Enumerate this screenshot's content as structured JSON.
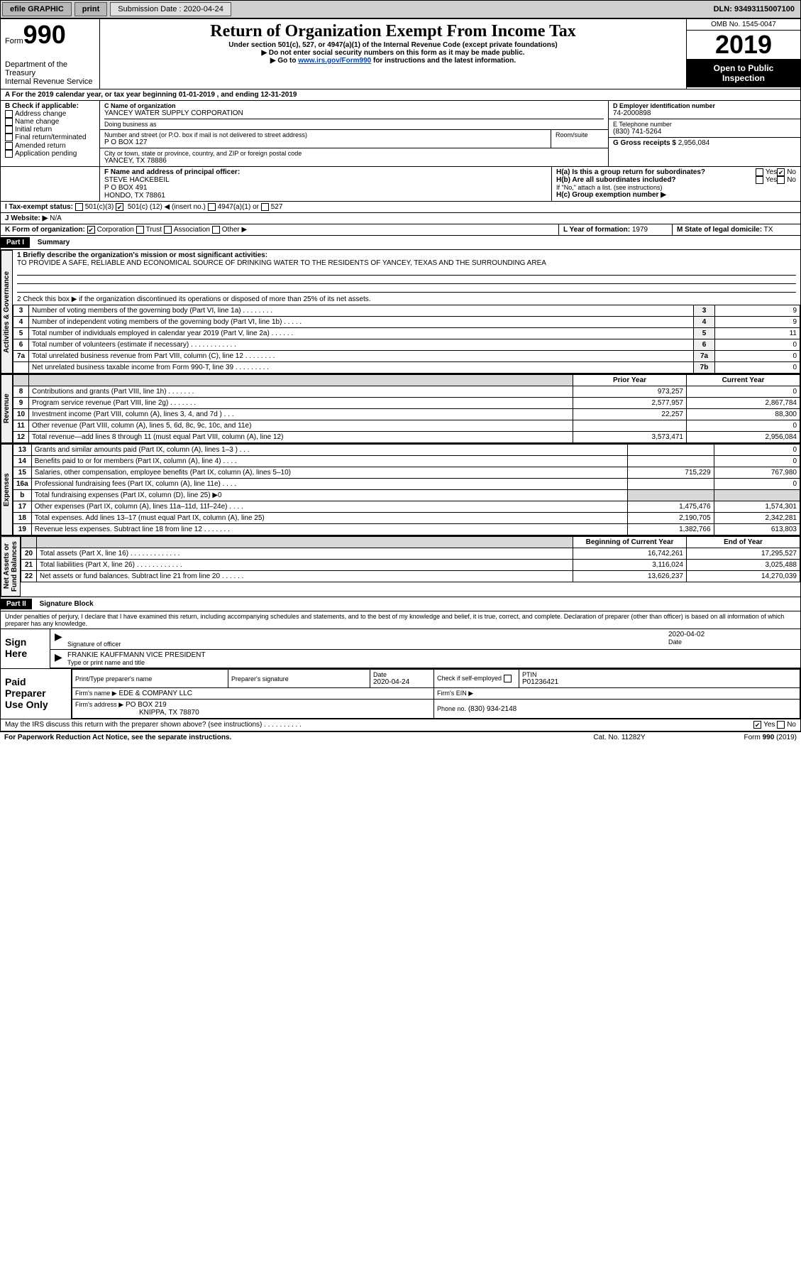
{
  "topbar": {
    "efile": "efile GRAPHIC",
    "print": "print",
    "submission_label": "Submission Date :",
    "submission_date": "2020-04-24",
    "dln_label": "DLN:",
    "dln": "93493115007100"
  },
  "header": {
    "form_word": "Form",
    "form_num": "990",
    "dept": "Department of the Treasury\nInternal Revenue Service",
    "title": "Return of Organization Exempt From Income Tax",
    "sub1": "Under section 501(c), 527, or 4947(a)(1) of the Internal Revenue Code (except private foundations)",
    "sub2": "▶ Do not enter social security numbers on this form as it may be made public.",
    "sub3_pre": "▶ Go to ",
    "sub3_link": "www.irs.gov/Form990",
    "sub3_post": " for instructions and the latest information.",
    "omb": "OMB No. 1545-0047",
    "year": "2019",
    "public1": "Open to Public",
    "public2": "Inspection"
  },
  "period": {
    "label_a": "A For the 2019 calendar year, or tax year beginning ",
    "begin": "01-01-2019",
    "mid": " , and ending ",
    "end": "12-31-2019"
  },
  "boxB": {
    "label": "B Check if applicable:",
    "opts": [
      "Address change",
      "Name change",
      "Initial return",
      "Final return/terminated",
      "Amended return",
      "Application pending"
    ]
  },
  "boxC": {
    "label": "C Name of organization",
    "org": "YANCEY WATER SUPPLY CORPORATION",
    "dba_label": "Doing business as",
    "street_label": "Number and street (or P.O. box if mail is not delivered to street address)",
    "street": "P O BOX 127",
    "room_label": "Room/suite",
    "city_label": "City or town, state or province, country, and ZIP or foreign postal code",
    "city": "YANCEY, TX  78886"
  },
  "boxD": {
    "label": "D Employer identification number",
    "ein": "74-2000898"
  },
  "boxE": {
    "label": "E Telephone number",
    "phone": "(830) 741-5264"
  },
  "boxG": {
    "label": "G Gross receipts $",
    "amount": "2,956,084"
  },
  "boxF": {
    "label": "F Name and address of principal officer:",
    "name": "STEVE HACKEBEIL",
    "addr1": "P O BOX 491",
    "addr2": "HONDO, TX  78861"
  },
  "boxH": {
    "a_label": "H(a) Is this a group return for subordinates?",
    "b_label": "H(b) Are all subordinates included?",
    "note": "If \"No,\" attach a list. (see instructions)",
    "c_label": "H(c) Group exemption number ▶",
    "yes": "Yes",
    "no": "No"
  },
  "boxI": {
    "label": "I   Tax-exempt status:",
    "opt1": "501(c)(3)",
    "opt2_pre": "501(c) (",
    "opt2_num": "12",
    "opt2_post": ") ◀ (insert no.)",
    "opt3": "4947(a)(1) or",
    "opt4": "527"
  },
  "boxJ": {
    "label": "J   Website: ▶",
    "value": "N/A"
  },
  "boxK": {
    "label": "K Form of organization:",
    "opts": [
      "Corporation",
      "Trust",
      "Association",
      "Other ▶"
    ]
  },
  "boxL": {
    "label": "L Year of formation:",
    "value": "1979"
  },
  "boxM": {
    "label": "M State of legal domicile:",
    "value": "TX"
  },
  "part1": {
    "bar": "Part I",
    "title": "Summary",
    "l1_label": "1   Briefly describe the organization's mission or most significant activities:",
    "l1_text": "TO PROVIDE A SAFE, RELIABLE AND ECONOMICAL SOURCE OF DRINKING WATER TO THE RESIDENTS OF YANCEY, TEXAS AND THE SURROUNDING AREA",
    "l2": "2   Check this box ▶       if the organization discontinued its operations or disposed of more than 25% of its net assets.",
    "gov_rows": [
      {
        "n": "3",
        "txt": "Number of voting members of the governing body (Part VI, line 1a)  .    .    .    .    .    .    .    .",
        "box": "3",
        "val": "9"
      },
      {
        "n": "4",
        "txt": "Number of independent voting members of the governing body (Part VI, line 1b)  .    .    .    .    .",
        "box": "4",
        "val": "9"
      },
      {
        "n": "5",
        "txt": "Total number of individuals employed in calendar year 2019 (Part V, line 2a)  .    .    .    .    .    .",
        "box": "5",
        "val": "11"
      },
      {
        "n": "6",
        "txt": "Total number of volunteers (estimate if necessary)  .    .    .    .    .    .    .    .    .    .    .    .",
        "box": "6",
        "val": "0"
      },
      {
        "n": "7a",
        "txt": "Total unrelated business revenue from Part VIII, column (C), line 12  .    .    .    .    .    .    .    .",
        "box": "7a",
        "val": "0"
      },
      {
        "n": "",
        "txt": "Net unrelated business taxable income from Form 990-T, line 39  .    .    .    .    .    .    .    .    .",
        "box": "7b",
        "val": "0"
      }
    ],
    "prior_hdr": "Prior Year",
    "curr_hdr": "Current Year",
    "rev_rows": [
      {
        "n": "8",
        "txt": "Contributions and grants (Part VIII, line 1h)  .    .    .    .    .    .    .",
        "py": "973,257",
        "cy": "0"
      },
      {
        "n": "9",
        "txt": "Program service revenue (Part VIII, line 2g)  .    .    .    .    .    .    .",
        "py": "2,577,957",
        "cy": "2,867,784"
      },
      {
        "n": "10",
        "txt": "Investment income (Part VIII, column (A), lines 3, 4, and 7d )  .    .    .",
        "py": "22,257",
        "cy": "88,300"
      },
      {
        "n": "11",
        "txt": "Other revenue (Part VIII, column (A), lines 5, 6d, 8c, 9c, 10c, and 11e)",
        "py": "",
        "cy": "0"
      },
      {
        "n": "12",
        "txt": "Total revenue—add lines 8 through 11 (must equal Part VIII, column (A), line 12)",
        "py": "3,573,471",
        "cy": "2,956,084"
      }
    ],
    "exp_rows": [
      {
        "n": "13",
        "txt": "Grants and similar amounts paid (Part IX, column (A), lines 1–3 )  .    .    .",
        "py": "",
        "cy": "0"
      },
      {
        "n": "14",
        "txt": "Benefits paid to or for members (Part IX, column (A), line 4)  .    .    .    .",
        "py": "",
        "cy": "0"
      },
      {
        "n": "15",
        "txt": "Salaries, other compensation, employee benefits (Part IX, column (A), lines 5–10)",
        "py": "715,229",
        "cy": "767,980"
      },
      {
        "n": "16a",
        "txt": "Professional fundraising fees (Part IX, column (A), line 11e)  .    .    .    .",
        "py": "",
        "cy": "0"
      },
      {
        "n": "b",
        "txt": "Total fundraising expenses (Part IX, column (D), line 25) ▶0",
        "py": "SHADE",
        "cy": "SHADE"
      },
      {
        "n": "17",
        "txt": "Other expenses (Part IX, column (A), lines 11a–11d, 11f–24e)  .    .    .    .",
        "py": "1,475,476",
        "cy": "1,574,301"
      },
      {
        "n": "18",
        "txt": "Total expenses. Add lines 13–17 (must equal Part IX, column (A), line 25)",
        "py": "2,190,705",
        "cy": "2,342,281"
      },
      {
        "n": "19",
        "txt": "Revenue less expenses. Subtract line 18 from line 12  .    .    .    .    .    .    .",
        "py": "1,382,766",
        "cy": "613,803"
      }
    ],
    "na_hdr1": "Beginning of Current Year",
    "na_hdr2": "End of Year",
    "na_rows": [
      {
        "n": "20",
        "txt": "Total assets (Part X, line 16)  .    .    .    .    .    .    .    .    .    .    .    .    .",
        "py": "16,742,261",
        "cy": "17,295,527"
      },
      {
        "n": "21",
        "txt": "Total liabilities (Part X, line 26)  .    .    .    .    .    .    .    .    .    .    .    .",
        "py": "3,116,024",
        "cy": "3,025,488"
      },
      {
        "n": "22",
        "txt": "Net assets or fund balances. Subtract line 21 from line 20  .    .    .    .    .    .",
        "py": "13,626,237",
        "cy": "14,270,039"
      }
    ],
    "vlabels": {
      "gov": "Activities & Governance",
      "rev": "Revenue",
      "exp": "Expenses",
      "na": "Net Assets or\nFund Balances"
    }
  },
  "part2": {
    "bar": "Part II",
    "title": "Signature Block",
    "penalty": "Under penalties of perjury, I declare that I have examined this return, including accompanying schedules and statements, and to the best of my knowledge and belief, it is true, correct, and complete. Declaration of preparer (other than officer) is based on all information of which preparer has any knowledge.",
    "sign_here": "Sign Here",
    "sig_officer": "Signature of officer",
    "sig_date_label": "Date",
    "sig_date": "2020-04-02",
    "officer_name": "FRANKIE KAUFFMANN  VICE PRESIDENT",
    "officer_caption": "Type or print name and title",
    "paid": "Paid Preparer Use Only",
    "prep_name_label": "Print/Type preparer's name",
    "prep_sig_label": "Preparer's signature",
    "prep_date_label": "Date",
    "prep_date": "2020-04-24",
    "self_emp": "Check        if self-employed",
    "ptin_label": "PTIN",
    "ptin": "P01236421",
    "firm_name_label": "Firm's name   ▶",
    "firm_name": "EDE & COMPANY LLC",
    "firm_ein_label": "Firm's EIN ▶",
    "firm_addr_label": "Firm's address ▶",
    "firm_addr1": "PO BOX 219",
    "firm_addr2": "KNIPPA, TX  78870",
    "firm_phone_label": "Phone no.",
    "firm_phone": "(830) 934-2148",
    "may_irs": "May the IRS discuss this return with the preparer shown above? (see instructions)  .    .    .    .    .    .    .    .    .    .",
    "yes": "Yes",
    "no": "No"
  },
  "footer": {
    "pra": "For Paperwork Reduction Act Notice, see the separate instructions.",
    "cat": "Cat. No. 11282Y",
    "formrev": "Form 990 (2019)"
  },
  "colors": {
    "link": "#0645ad",
    "shade": "#d8d8d8"
  }
}
